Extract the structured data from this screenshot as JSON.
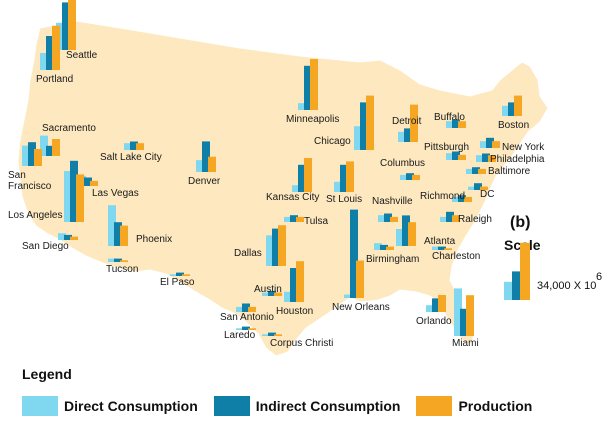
{
  "panel_label": "(b)",
  "scale": {
    "title": "Scale",
    "value": "34,000 X 10",
    "exponent": "6"
  },
  "legend": {
    "title": "Legend",
    "items": [
      {
        "label": "Direct Consumption",
        "color": "#7fd8f0"
      },
      {
        "label": "Indirect Consumption",
        "color": "#0f7fa8"
      },
      {
        "label": "Production",
        "color": "#f5a623"
      }
    ]
  },
  "colors": {
    "land": "#fde8bf",
    "border": "#ffffff",
    "background": "#ffffff"
  },
  "cities": [
    {
      "name": "Seattle",
      "direct": 16,
      "indirect": 28,
      "production": 32
    },
    {
      "name": "Portland",
      "direct": 10,
      "indirect": 20,
      "production": 26
    },
    {
      "name": "Sacramento",
      "direct": 12,
      "indirect": 6,
      "production": 10
    },
    {
      "name": "San Francisco",
      "direct": 12,
      "indirect": 14,
      "production": 10
    },
    {
      "name": "Salt Lake City",
      "direct": 4,
      "indirect": 5,
      "production": 4
    },
    {
      "name": "Las Vegas",
      "direct": 6,
      "indirect": 5,
      "production": 3
    },
    {
      "name": "Los Angeles",
      "direct": 30,
      "indirect": 36,
      "production": 28
    },
    {
      "name": "San Diego",
      "direct": 4,
      "indirect": 3,
      "production": 2
    },
    {
      "name": "Denver",
      "direct": 7,
      "indirect": 18,
      "production": 9
    },
    {
      "name": "Phoenix",
      "direct": 24,
      "indirect": 14,
      "production": 12
    },
    {
      "name": "Tucson",
      "direct": 2,
      "indirect": 2,
      "production": 1
    },
    {
      "name": "El Paso",
      "direct": 1,
      "indirect": 2,
      "production": 1
    },
    {
      "name": "Minneapolis",
      "direct": 4,
      "indirect": 26,
      "production": 30
    },
    {
      "name": "Kansas City",
      "direct": 4,
      "indirect": 16,
      "production": 20
    },
    {
      "name": "St Louis",
      "direct": 6,
      "indirect": 16,
      "production": 18
    },
    {
      "name": "Chicago",
      "direct": 14,
      "indirect": 28,
      "production": 32
    },
    {
      "name": "Tulsa",
      "direct": 3,
      "indirect": 4,
      "production": 3
    },
    {
      "name": "Dallas",
      "direct": 18,
      "indirect": 22,
      "production": 24
    },
    {
      "name": "Austin",
      "direct": 2,
      "indirect": 3,
      "production": 2
    },
    {
      "name": "San Antonio",
      "direct": 3,
      "indirect": 5,
      "production": 3
    },
    {
      "name": "Houston",
      "direct": 6,
      "indirect": 20,
      "production": 24
    },
    {
      "name": "Laredo",
      "direct": 1,
      "indirect": 2,
      "production": 1
    },
    {
      "name": "Corpus Christi",
      "direct": 1,
      "indirect": 2,
      "production": 1
    },
    {
      "name": "New Orleans",
      "direct": 2,
      "indirect": 52,
      "production": 22
    },
    {
      "name": "Nashville",
      "direct": 4,
      "indirect": 5,
      "production": 3
    },
    {
      "name": "Birmingham",
      "direct": 4,
      "indirect": 3,
      "production": 2
    },
    {
      "name": "Atlanta",
      "direct": 10,
      "indirect": 18,
      "production": 14
    },
    {
      "name": "Detroit",
      "direct": 6,
      "indirect": 8,
      "production": 22
    },
    {
      "name": "Columbus",
      "direct": 3,
      "indirect": 4,
      "production": 3
    },
    {
      "name": "Pittsburgh",
      "direct": 4,
      "indirect": 5,
      "production": 3
    },
    {
      "name": "Buffalo",
      "direct": 4,
      "indirect": 5,
      "production": 4
    },
    {
      "name": "Boston",
      "direct": 6,
      "indirect": 8,
      "production": 12
    },
    {
      "name": "New York",
      "direct": 4,
      "indirect": 6,
      "production": 4
    },
    {
      "name": "Philadelphia",
      "direct": 4,
      "indirect": 5,
      "production": 4
    },
    {
      "name": "Baltimore",
      "direct": 3,
      "indirect": 4,
      "production": 3
    },
    {
      "name": "DC",
      "direct": 2,
      "indirect": 4,
      "production": 2
    },
    {
      "name": "Richmond",
      "direct": 3,
      "indirect": 4,
      "production": 3
    },
    {
      "name": "Raleigh",
      "direct": 3,
      "indirect": 6,
      "production": 4
    },
    {
      "name": "Charleston",
      "direct": 2,
      "indirect": 2,
      "production": 1
    },
    {
      "name": "Orlando",
      "direct": 4,
      "indirect": 8,
      "production": 10
    },
    {
      "name": "Miami",
      "direct": 28,
      "indirect": 16,
      "production": 24
    }
  ],
  "scale_bar": {
    "direct": 7,
    "indirect": 11,
    "production": 22
  }
}
